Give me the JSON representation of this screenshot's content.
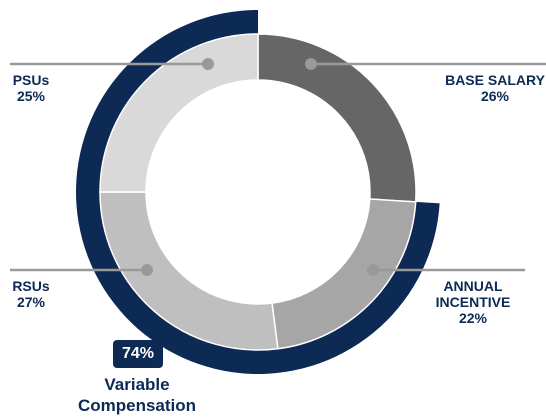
{
  "chart_data": {
    "type": "donut",
    "categories": [
      "BASE SALARY",
      "ANNUAL INCENTIVE",
      "RSUs",
      "PSUs"
    ],
    "values": [
      26,
      22,
      27,
      25
    ],
    "value_labels": [
      "26%",
      "22%",
      "27%",
      "25%"
    ],
    "colors": [
      "#666666",
      "#a6a6a6",
      "#bfbfbf",
      "#d9d9d9"
    ],
    "outer_ring": {
      "value": 74,
      "value_label": "74%",
      "label": "Variable Compensation",
      "color": "#0d2a54"
    }
  }
}
